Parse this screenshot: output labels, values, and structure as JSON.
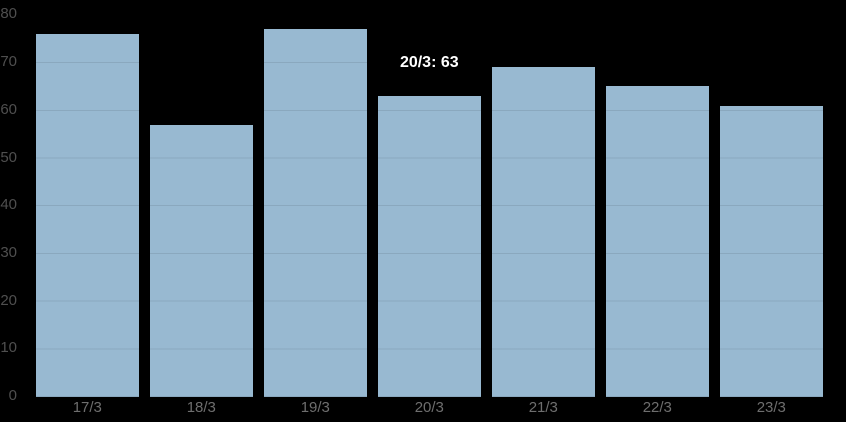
{
  "chart_data": {
    "type": "bar",
    "categories": [
      "17/3",
      "18/3",
      "19/3",
      "20/3",
      "21/3",
      "22/3",
      "23/3"
    ],
    "values": [
      76,
      57,
      77,
      63,
      69,
      65,
      61
    ],
    "title": "",
    "xlabel": "",
    "ylabel": "",
    "ylim": [
      0,
      80
    ],
    "yticks": [
      0,
      10,
      20,
      30,
      40,
      50,
      60,
      70,
      80
    ],
    "grid": true,
    "legend": false,
    "tooltip": {
      "text": "20/3: 63",
      "category": "20/3",
      "value": 63
    },
    "colors": {
      "background": "#000000",
      "bar": "#98b9d1",
      "y_label": "#4f4f4f",
      "x_label": "#6e6e6e",
      "tooltip_text": "#ffffff"
    }
  }
}
